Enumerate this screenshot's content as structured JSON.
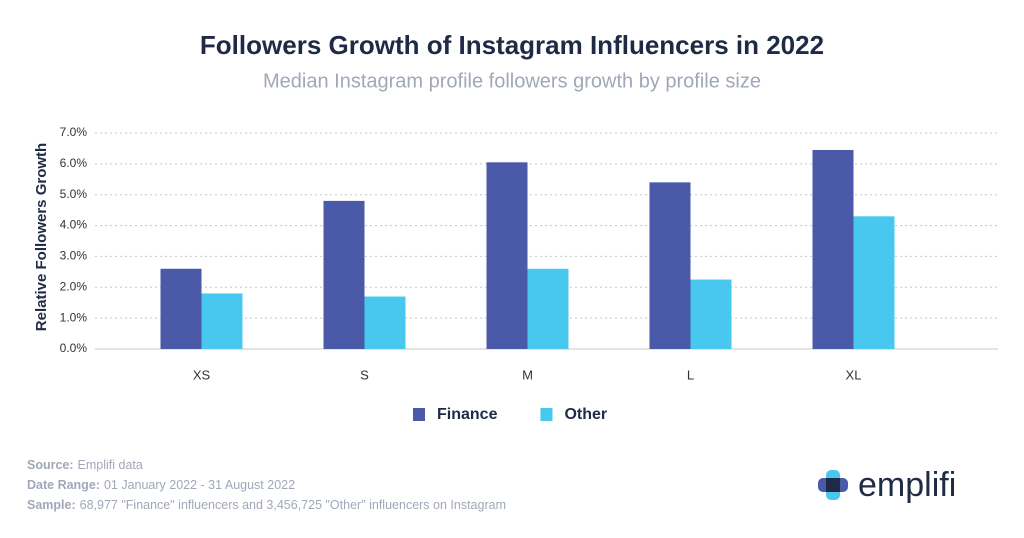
{
  "chart_data": {
    "type": "bar",
    "title": "Followers Growth of Instagram Influencers in 2022",
    "subtitle": "Median Instagram profile followers growth by profile size",
    "y_label": "Relative Followers Growth",
    "categories": [
      "XS",
      "S",
      "M",
      "L",
      "XL"
    ],
    "series": [
      {
        "name": "Finance",
        "color": "#4a5aa8",
        "values": [
          2.6,
          4.8,
          6.05,
          5.4,
          6.45
        ]
      },
      {
        "name": "Other",
        "color": "#48c8ee",
        "values": [
          1.8,
          1.7,
          2.6,
          2.25,
          4.3
        ]
      }
    ],
    "ylim": [
      0,
      7
    ],
    "yticks": [
      {
        "value": 0,
        "label": "0.0%"
      },
      {
        "value": 1,
        "label": "1.0%"
      },
      {
        "value": 2,
        "label": "2.0%"
      },
      {
        "value": 3,
        "label": "3.0%"
      },
      {
        "value": 4,
        "label": "4.0%"
      },
      {
        "value": 5,
        "label": "5.0%"
      },
      {
        "value": 6,
        "label": "6.0%"
      },
      {
        "value": 7,
        "label": "7.0%"
      }
    ],
    "grid": true,
    "legend": "bottom"
  },
  "footer": {
    "lines": [
      {
        "label": "Source:",
        "text": "Emplifi data"
      },
      {
        "label": "Date Range:",
        "text": "01 January 2022 - 31 August 2022"
      },
      {
        "label": "Sample:",
        "text": "68,977 \"Finance\" influencers and 3,456,725 \"Other\" influencers on Instagram"
      }
    ],
    "logo": "emplifi"
  }
}
